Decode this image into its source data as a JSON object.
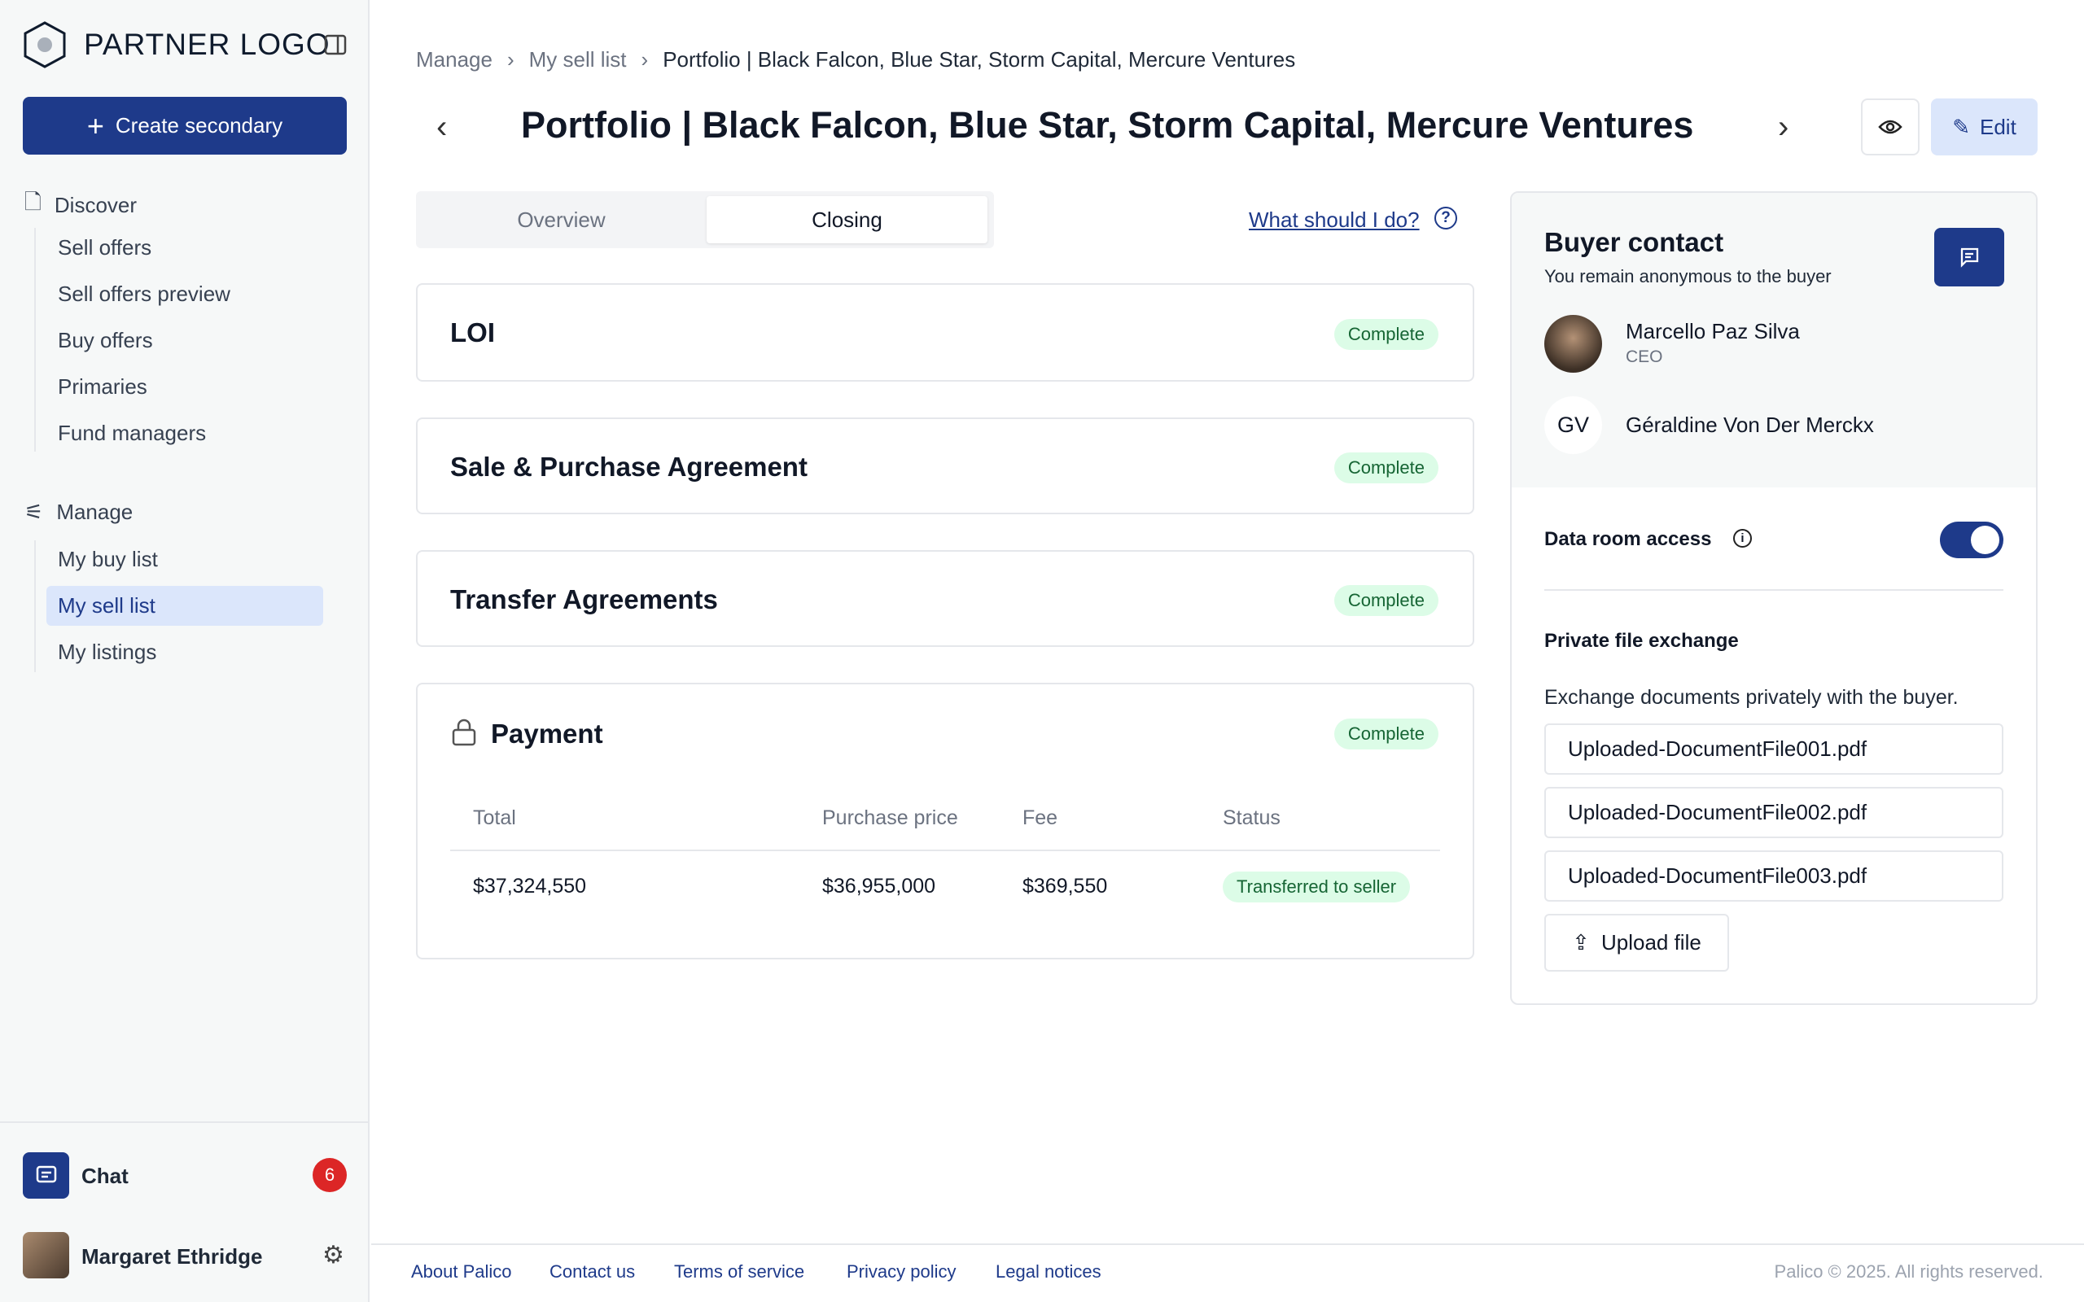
{
  "sidebar": {
    "logo": "PARTNER LOGO",
    "create_label": "Create secondary",
    "discover": {
      "label": "Discover",
      "items": [
        "Sell offers",
        "Sell offers preview",
        "Buy offers",
        "Primaries",
        "Fund managers"
      ]
    },
    "manage": {
      "label": "Manage",
      "items": [
        "My buy list",
        "My sell list",
        "My listings"
      ],
      "selected": "My sell list"
    },
    "chat": {
      "label": "Chat",
      "badge": "6"
    },
    "user": {
      "name": "Margaret Ethridge"
    }
  },
  "breadcrumb": [
    "Manage",
    "My sell list",
    "Portfolio | Black Falcon, Blue Star, Storm Capital, Mercure Ventures"
  ],
  "header": {
    "title": "Portfolio | Black Falcon, Blue Star, Storm Capital, Mercure Ventures",
    "edit_label": "Edit"
  },
  "tabs": [
    {
      "label": "Overview",
      "active": false
    },
    {
      "label": "Closing",
      "active": true
    }
  ],
  "help_link": "What should I do?",
  "steps": [
    {
      "title": "LOI",
      "status": "Complete"
    },
    {
      "title": "Sale & Purchase Agreement",
      "status": "Complete"
    },
    {
      "title": "Transfer Agreements",
      "status": "Complete"
    },
    {
      "title": "Payment",
      "status": "Complete"
    }
  ],
  "payment": {
    "headers": [
      "Total",
      "Purchase price",
      "Fee",
      "Status"
    ],
    "row": [
      "$37,324,550",
      "$36,955,000",
      "$369,550",
      "Transferred to seller"
    ]
  },
  "buyer": {
    "title": "Buyer contact",
    "subtitle": "You remain anonymous to the buyer",
    "contacts": [
      {
        "name": "Marcello Paz Silva",
        "role": "CEO"
      },
      {
        "name": "Géraldine Von Der Merckx",
        "initials": "GV"
      }
    ],
    "data_room_label": "Data room access",
    "data_room_on": true,
    "file_exchange_title": "Private file exchange",
    "file_exchange_desc": "Exchange documents privately with the buyer.",
    "files": [
      "Uploaded-DocumentFile001.pdf",
      "Uploaded-DocumentFile002.pdf",
      "Uploaded-DocumentFile003.pdf"
    ],
    "upload_label": "Upload file"
  },
  "footer": {
    "links": [
      "About Palico",
      "Contact us",
      "Terms of service",
      "Privacy policy",
      "Legal notices"
    ],
    "copyright": "Palico © 2025. All rights reserved."
  },
  "colors": {
    "primary": "#1e3a8a",
    "success_bg": "#dcfce7",
    "success_text": "#166534",
    "badge": "#dc2626"
  }
}
